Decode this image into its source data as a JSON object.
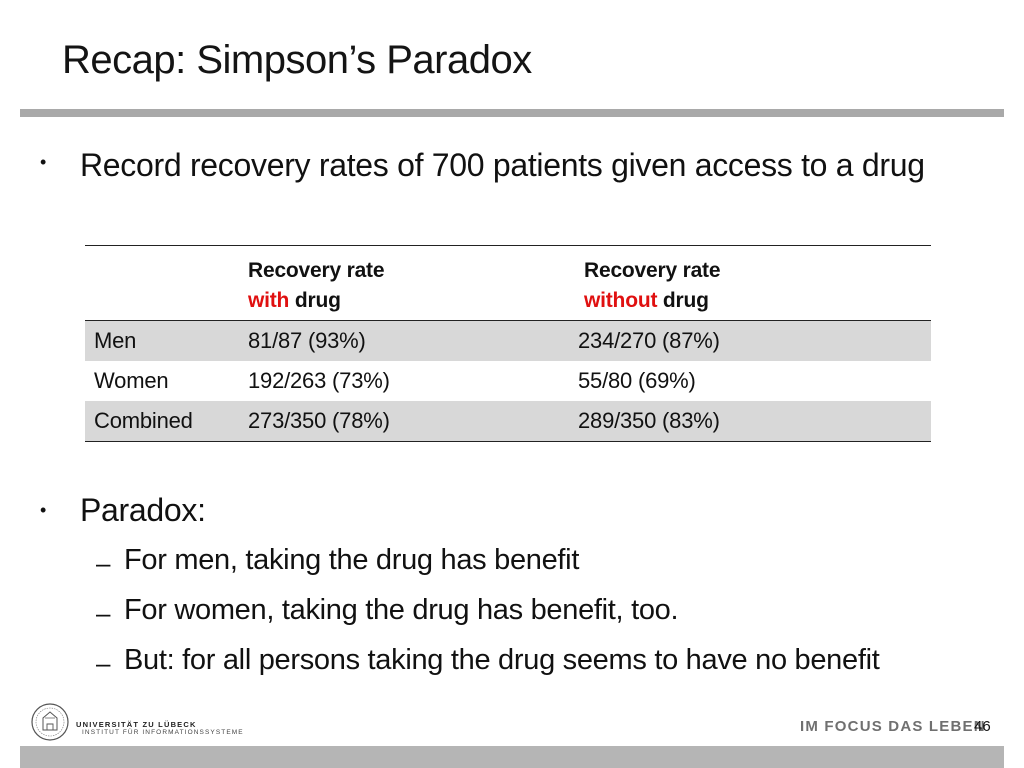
{
  "slide": {
    "title": "Recap: Simpson’s Paradox",
    "bullets": [
      {
        "marker": "•",
        "text": "Record recovery rates of 700 patients given access to a drug"
      },
      {
        "marker": "•",
        "text": "Paradox:",
        "subitems": [
          "For men, taking the drug has benefit",
          "For women, taking the drug has benefit, too.",
          "But: for all persons taking the drug seems to have no benefit"
        ],
        "sub_marker": "–"
      }
    ]
  },
  "table": {
    "header": {
      "col1_line1": "Recovery rate",
      "col1_red": "with",
      "col1_rest": " drug",
      "col2_line1": "Recovery rate",
      "col2_red": "without",
      "col2_rest": " drug"
    },
    "rows": [
      {
        "label": "Men",
        "with": "81/87 (93%)",
        "without": "234/270 (87%)",
        "shaded": true
      },
      {
        "label": "Women",
        "with": "192/263 (73%)",
        "without": "55/80 (69%)",
        "shaded": false
      },
      {
        "label": "Combined",
        "with": "273/350 (78%)",
        "without": "289/350 (83%)",
        "shaded": true
      }
    ]
  },
  "footer": {
    "university": "UNIVERSITÄT ZU LÜBECK",
    "institute": "INSTITUT FÜR INFORMATIONSSYSTEME",
    "motto": "IM FOCUS DAS LEBEN",
    "page_number": "46",
    "logo_icon": "university-seal-icon"
  },
  "colors": {
    "accent_red": "#e01010",
    "rule_gray": "#a9a9a9",
    "row_shade": "#d8d8d8",
    "footer_bar": "#b5b5b5"
  }
}
